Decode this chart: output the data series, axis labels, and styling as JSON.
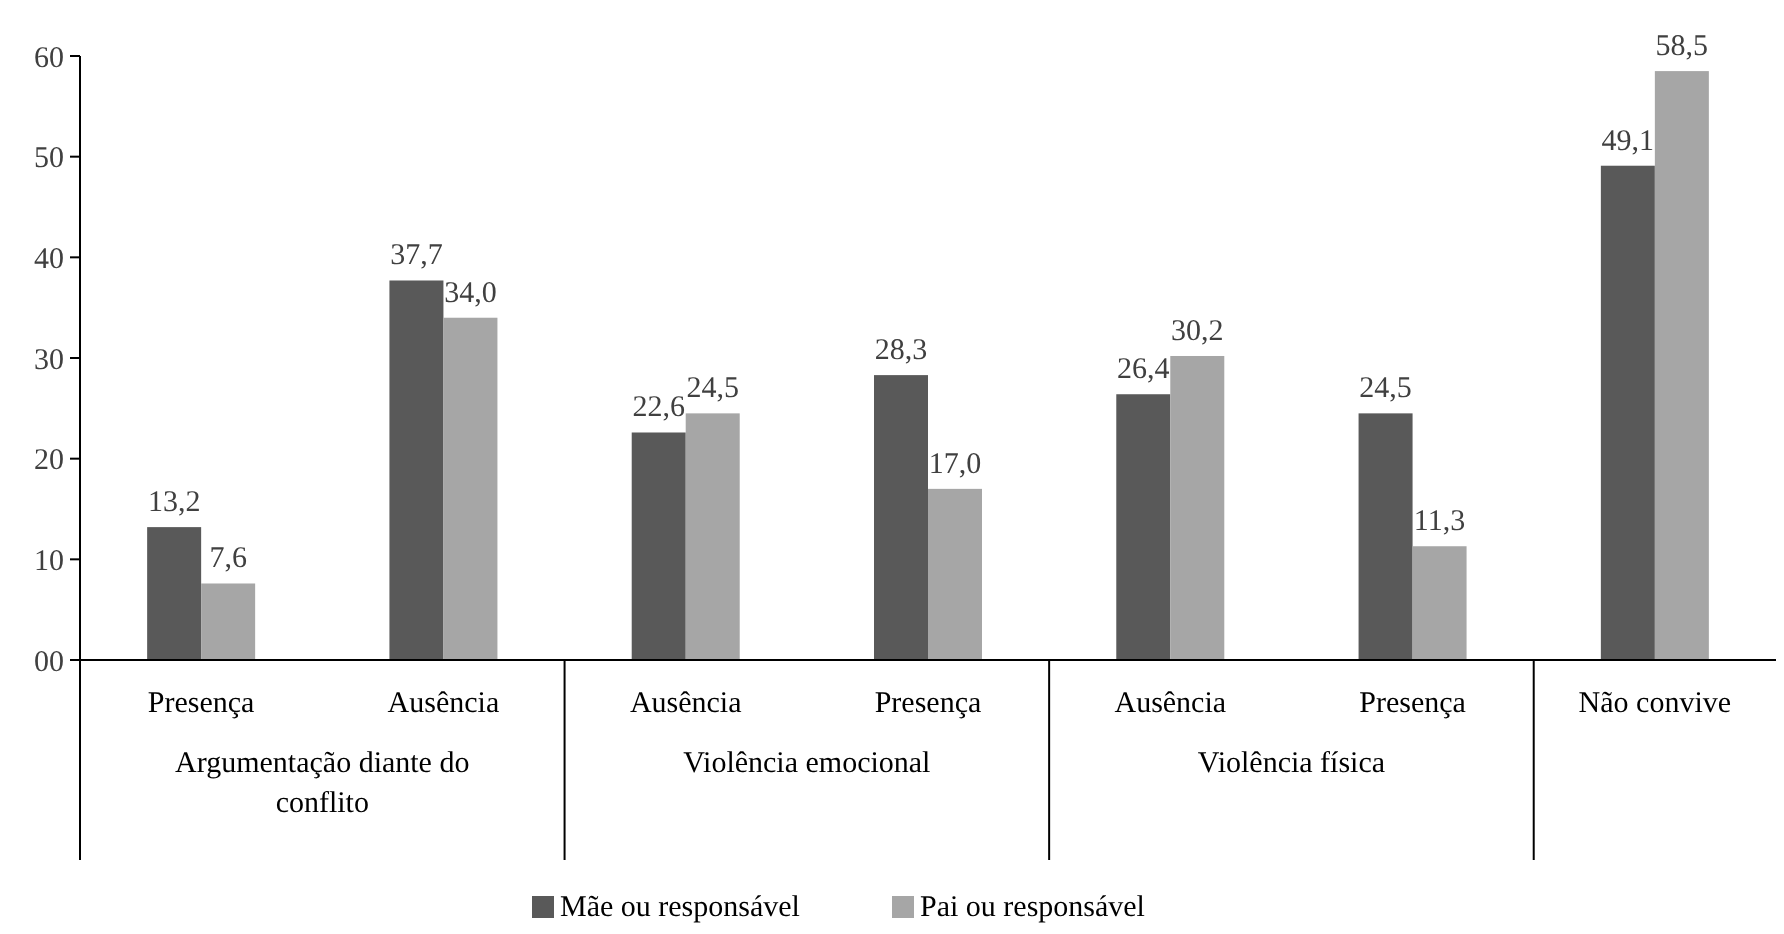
{
  "chart_data": {
    "type": "bar",
    "categories": [
      "Presença",
      "Ausência",
      "Ausência",
      "Presença",
      "Ausência",
      "Presença",
      "Não convive"
    ],
    "annotations": [
      "Argumentação diante do conflito",
      "Violência emocional",
      "Violência física"
    ],
    "series": [
      {
        "name": "Mãe ou responsável",
        "color": "#595959",
        "values": [
          13.2,
          37.7,
          22.6,
          28.3,
          26.4,
          24.5,
          49.1
        ],
        "value_labels": [
          "13,2",
          "37,7",
          "22,6",
          "28,3",
          "26,4",
          "24,5",
          "49,1"
        ]
      },
      {
        "name": "Pai ou responsável",
        "color": "#a6a6a6",
        "values": [
          7.6,
          34.0,
          24.5,
          17.0,
          30.2,
          11.3,
          58.5
        ],
        "value_labels": [
          "7,6",
          "34,0",
          "24,5",
          "17,0",
          "30,2",
          "11,3",
          "58,5"
        ]
      }
    ],
    "ylim": [
      0,
      60
    ],
    "yticks": [
      {
        "value": 0,
        "label": "00"
      },
      10,
      20,
      30,
      40,
      50,
      60
    ],
    "grid": false,
    "legend": "bottom"
  }
}
